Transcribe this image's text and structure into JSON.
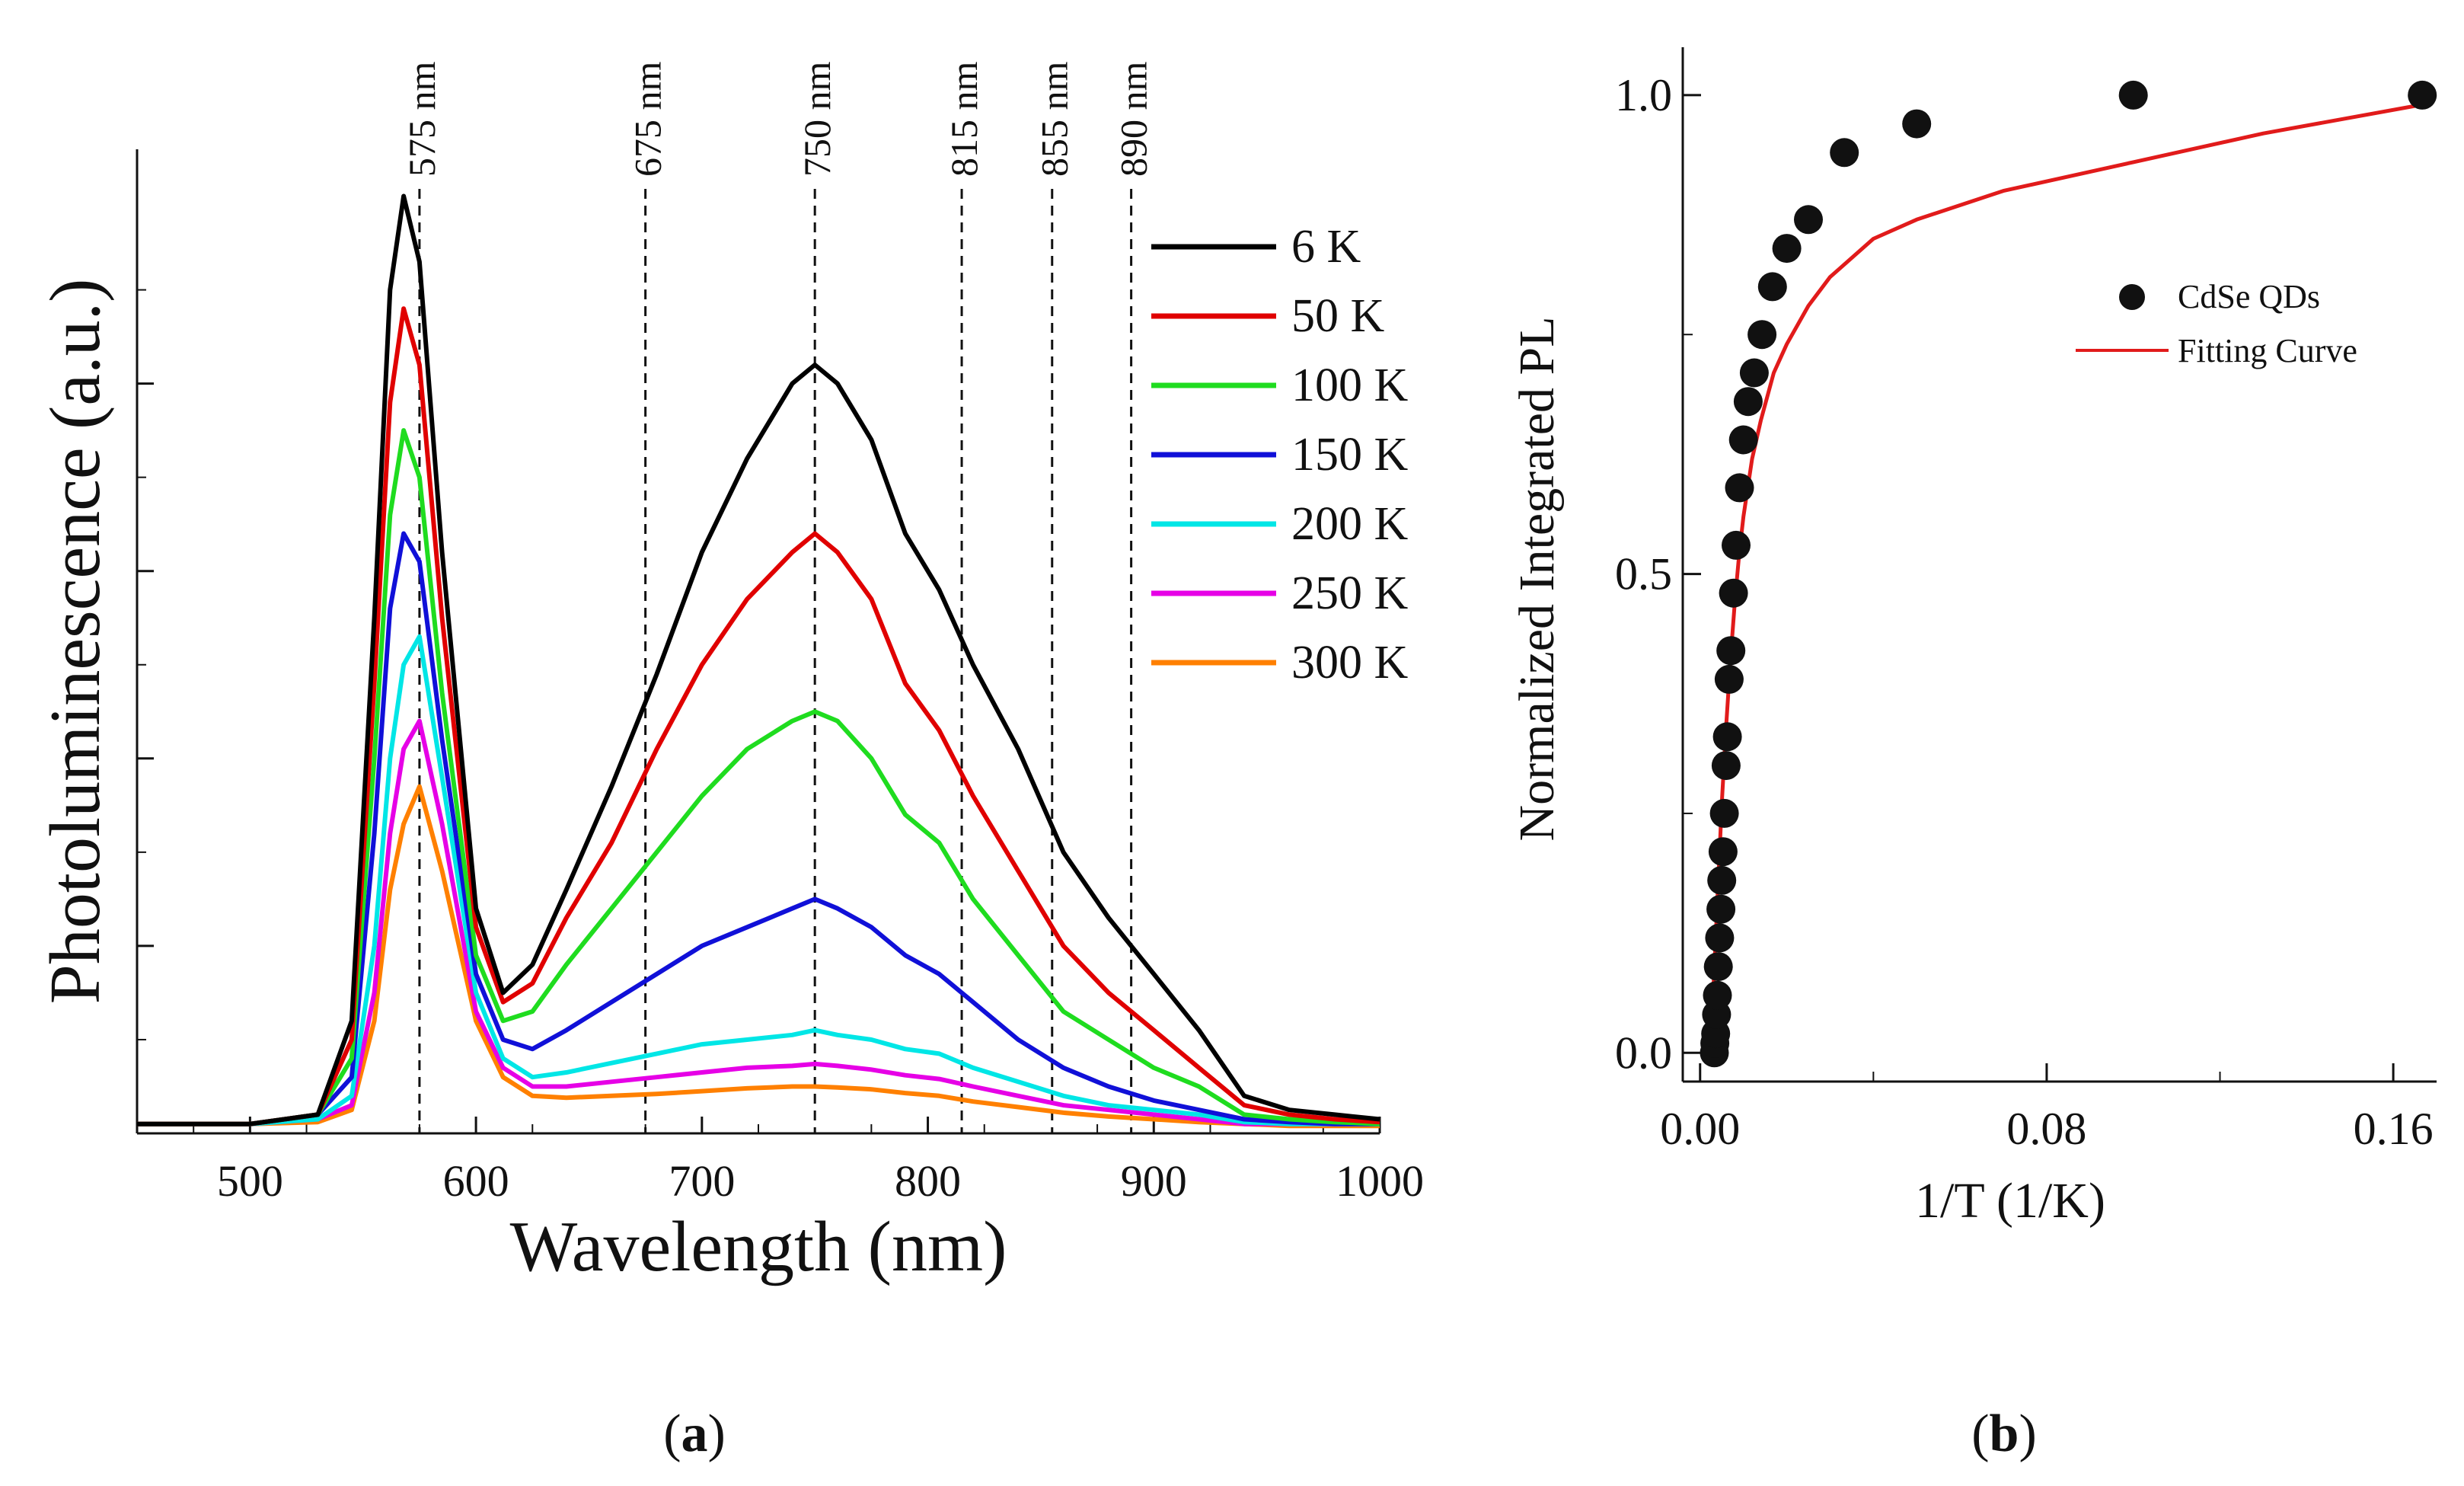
{
  "chart_data": [
    {
      "panel_label_open": "(",
      "panel_label": "a",
      "panel_label_close": ")",
      "type": "line",
      "title": "",
      "xlabel": "Wavelength (nm)",
      "ylabel": "Photoluminescence (a.u.)",
      "xlim": [
        450,
        1000
      ],
      "ylim": [
        0,
        1.05
      ],
      "xticks": [
        500,
        600,
        700,
        800,
        900,
        1000
      ],
      "xtick_labels": [
        "500",
        "600",
        "700",
        "800",
        "900",
        "1000"
      ],
      "yticks_major": [
        0.2,
        0.4,
        0.6,
        0.8
      ],
      "grid": false,
      "legend_position": "top-right",
      "reference_lines": [
        {
          "x": 575,
          "label": "575 nm"
        },
        {
          "x": 675,
          "label": "675 nm"
        },
        {
          "x": 750,
          "label": "750 nm"
        },
        {
          "x": 815,
          "label": "815 nm"
        },
        {
          "x": 855,
          "label": "855 nm"
        },
        {
          "x": 890,
          "label": "890 nm"
        }
      ],
      "series": [
        {
          "name": "6 K",
          "color": "#000000",
          "x": [
            450,
            500,
            530,
            545,
            555,
            562,
            568,
            575,
            585,
            600,
            612,
            625,
            640,
            660,
            680,
            700,
            720,
            740,
            750,
            760,
            775,
            790,
            805,
            820,
            840,
            860,
            880,
            900,
            920,
            940,
            960,
            980,
            1000
          ],
          "y": [
            0.01,
            0.01,
            0.02,
            0.12,
            0.55,
            0.9,
            1.0,
            0.93,
            0.62,
            0.24,
            0.15,
            0.18,
            0.26,
            0.37,
            0.49,
            0.62,
            0.72,
            0.8,
            0.82,
            0.8,
            0.74,
            0.64,
            0.58,
            0.5,
            0.41,
            0.3,
            0.23,
            0.17,
            0.11,
            0.04,
            0.025,
            0.02,
            0.015
          ]
        },
        {
          "name": "50 K",
          "color": "#e00000",
          "x": [
            450,
            500,
            530,
            545,
            555,
            562,
            568,
            575,
            585,
            600,
            612,
            625,
            640,
            660,
            680,
            700,
            720,
            740,
            750,
            760,
            775,
            790,
            805,
            820,
            840,
            860,
            880,
            900,
            920,
            940,
            960,
            980,
            1000
          ],
          "y": [
            0.01,
            0.01,
            0.02,
            0.1,
            0.48,
            0.78,
            0.88,
            0.82,
            0.55,
            0.22,
            0.14,
            0.16,
            0.23,
            0.31,
            0.41,
            0.5,
            0.57,
            0.62,
            0.64,
            0.62,
            0.57,
            0.48,
            0.43,
            0.36,
            0.28,
            0.2,
            0.15,
            0.11,
            0.07,
            0.03,
            0.02,
            0.015,
            0.012
          ]
        },
        {
          "name": "100 K",
          "color": "#1fdc1f",
          "x": [
            450,
            500,
            530,
            545,
            555,
            562,
            568,
            575,
            585,
            600,
            612,
            625,
            640,
            660,
            680,
            700,
            720,
            740,
            750,
            760,
            775,
            790,
            805,
            820,
            840,
            860,
            880,
            900,
            920,
            940,
            960,
            980,
            1000
          ],
          "y": [
            0.01,
            0.01,
            0.02,
            0.08,
            0.4,
            0.66,
            0.75,
            0.7,
            0.47,
            0.19,
            0.12,
            0.13,
            0.18,
            0.24,
            0.3,
            0.36,
            0.41,
            0.44,
            0.45,
            0.44,
            0.4,
            0.34,
            0.31,
            0.25,
            0.19,
            0.13,
            0.1,
            0.07,
            0.05,
            0.02,
            0.015,
            0.012,
            0.01
          ]
        },
        {
          "name": "150 K",
          "color": "#1010d8",
          "x": [
            450,
            500,
            530,
            545,
            555,
            562,
            568,
            575,
            585,
            600,
            612,
            625,
            640,
            660,
            680,
            700,
            720,
            740,
            750,
            760,
            775,
            790,
            805,
            820,
            840,
            860,
            880,
            900,
            920,
            940,
            960,
            980,
            1000
          ],
          "y": [
            0.01,
            0.01,
            0.02,
            0.06,
            0.32,
            0.56,
            0.64,
            0.61,
            0.42,
            0.17,
            0.1,
            0.09,
            0.11,
            0.14,
            0.17,
            0.2,
            0.22,
            0.24,
            0.25,
            0.24,
            0.22,
            0.19,
            0.17,
            0.14,
            0.1,
            0.07,
            0.05,
            0.035,
            0.025,
            0.015,
            0.012,
            0.01,
            0.01
          ]
        },
        {
          "name": "200 K",
          "color": "#00e6e6",
          "x": [
            450,
            500,
            530,
            545,
            555,
            562,
            568,
            575,
            585,
            600,
            612,
            625,
            640,
            660,
            680,
            700,
            720,
            740,
            750,
            760,
            775,
            790,
            805,
            820,
            840,
            860,
            880,
            900,
            920,
            940,
            960,
            980,
            1000
          ],
          "y": [
            0.01,
            0.01,
            0.015,
            0.04,
            0.2,
            0.4,
            0.5,
            0.53,
            0.38,
            0.15,
            0.08,
            0.06,
            0.065,
            0.075,
            0.085,
            0.095,
            0.1,
            0.105,
            0.11,
            0.105,
            0.1,
            0.09,
            0.085,
            0.07,
            0.055,
            0.04,
            0.03,
            0.025,
            0.02,
            0.012,
            0.01,
            0.01,
            0.01
          ]
        },
        {
          "name": "250 K",
          "color": "#e600e6",
          "x": [
            450,
            500,
            530,
            545,
            555,
            562,
            568,
            575,
            585,
            600,
            612,
            625,
            640,
            660,
            680,
            700,
            720,
            740,
            750,
            760,
            775,
            790,
            805,
            820,
            840,
            860,
            880,
            900,
            920,
            940,
            960,
            980,
            1000
          ],
          "y": [
            0.01,
            0.01,
            0.015,
            0.03,
            0.15,
            0.32,
            0.41,
            0.44,
            0.33,
            0.13,
            0.07,
            0.05,
            0.05,
            0.055,
            0.06,
            0.065,
            0.07,
            0.072,
            0.074,
            0.072,
            0.068,
            0.062,
            0.058,
            0.05,
            0.04,
            0.03,
            0.025,
            0.02,
            0.015,
            0.01,
            0.01,
            0.01,
            0.01
          ]
        },
        {
          "name": "300 K",
          "color": "#ff8000",
          "x": [
            450,
            500,
            530,
            545,
            555,
            562,
            568,
            575,
            585,
            600,
            612,
            625,
            640,
            660,
            680,
            700,
            720,
            740,
            750,
            760,
            775,
            790,
            805,
            820,
            840,
            860,
            880,
            900,
            920,
            940,
            960,
            980,
            1000
          ],
          "y": [
            0.01,
            0.01,
            0.012,
            0.025,
            0.12,
            0.26,
            0.33,
            0.37,
            0.28,
            0.12,
            0.06,
            0.04,
            0.038,
            0.04,
            0.042,
            0.045,
            0.048,
            0.05,
            0.05,
            0.049,
            0.047,
            0.043,
            0.04,
            0.034,
            0.028,
            0.022,
            0.018,
            0.015,
            0.012,
            0.01,
            0.008,
            0.008,
            0.008
          ]
        }
      ]
    },
    {
      "panel_label_open": "(",
      "panel_label": "b",
      "panel_label_close": ")",
      "type": "scatter",
      "title": "",
      "xlabel": "1/T (1/K)",
      "ylabel": "Normalized Integrated PL",
      "xlim": [
        -0.004,
        0.17
      ],
      "ylim": [
        -0.03,
        1.05
      ],
      "xticks": [
        0.0,
        0.08,
        0.16
      ],
      "xtick_labels": [
        "0.00",
        "0.08",
        "0.16"
      ],
      "xticks_minor": [
        0.04,
        0.12
      ],
      "yticks": [
        0.0,
        0.5,
        1.0
      ],
      "ytick_labels": [
        "0.0",
        "0.5",
        "1.0"
      ],
      "yticks_minor": [
        0.25,
        0.75
      ],
      "grid": false,
      "legend_position": "right",
      "series": [
        {
          "name": "CdSe QDs",
          "kind": "markers",
          "color": "#111111",
          "x": [
            0.0033,
            0.0034,
            0.0036,
            0.0038,
            0.004,
            0.0042,
            0.0045,
            0.0048,
            0.005,
            0.0053,
            0.0056,
            0.006,
            0.0063,
            0.0067,
            0.0071,
            0.0077,
            0.0083,
            0.0091,
            0.01,
            0.0111,
            0.0125,
            0.0143,
            0.0167,
            0.02,
            0.025,
            0.0333,
            0.05,
            0.1,
            0.1667
          ],
          "y": [
            0.0,
            0.01,
            0.02,
            0.04,
            0.06,
            0.09,
            0.12,
            0.15,
            0.18,
            0.21,
            0.25,
            0.3,
            0.33,
            0.39,
            0.42,
            0.48,
            0.53,
            0.59,
            0.64,
            0.68,
            0.71,
            0.75,
            0.8,
            0.84,
            0.87,
            0.94,
            0.97,
            1.0,
            1.0
          ]
        },
        {
          "name": "Fitting Curve",
          "kind": "line",
          "color": "#e11b1b",
          "x": [
            0.003,
            0.0035,
            0.004,
            0.0045,
            0.005,
            0.006,
            0.007,
            0.008,
            0.009,
            0.01,
            0.012,
            0.014,
            0.017,
            0.02,
            0.025,
            0.03,
            0.04,
            0.05,
            0.07,
            0.1,
            0.13,
            0.1667
          ],
          "y": [
            0.06,
            0.11,
            0.16,
            0.21,
            0.26,
            0.34,
            0.41,
            0.47,
            0.52,
            0.56,
            0.62,
            0.66,
            0.71,
            0.74,
            0.78,
            0.81,
            0.85,
            0.87,
            0.9,
            0.93,
            0.96,
            0.99
          ]
        }
      ]
    }
  ]
}
